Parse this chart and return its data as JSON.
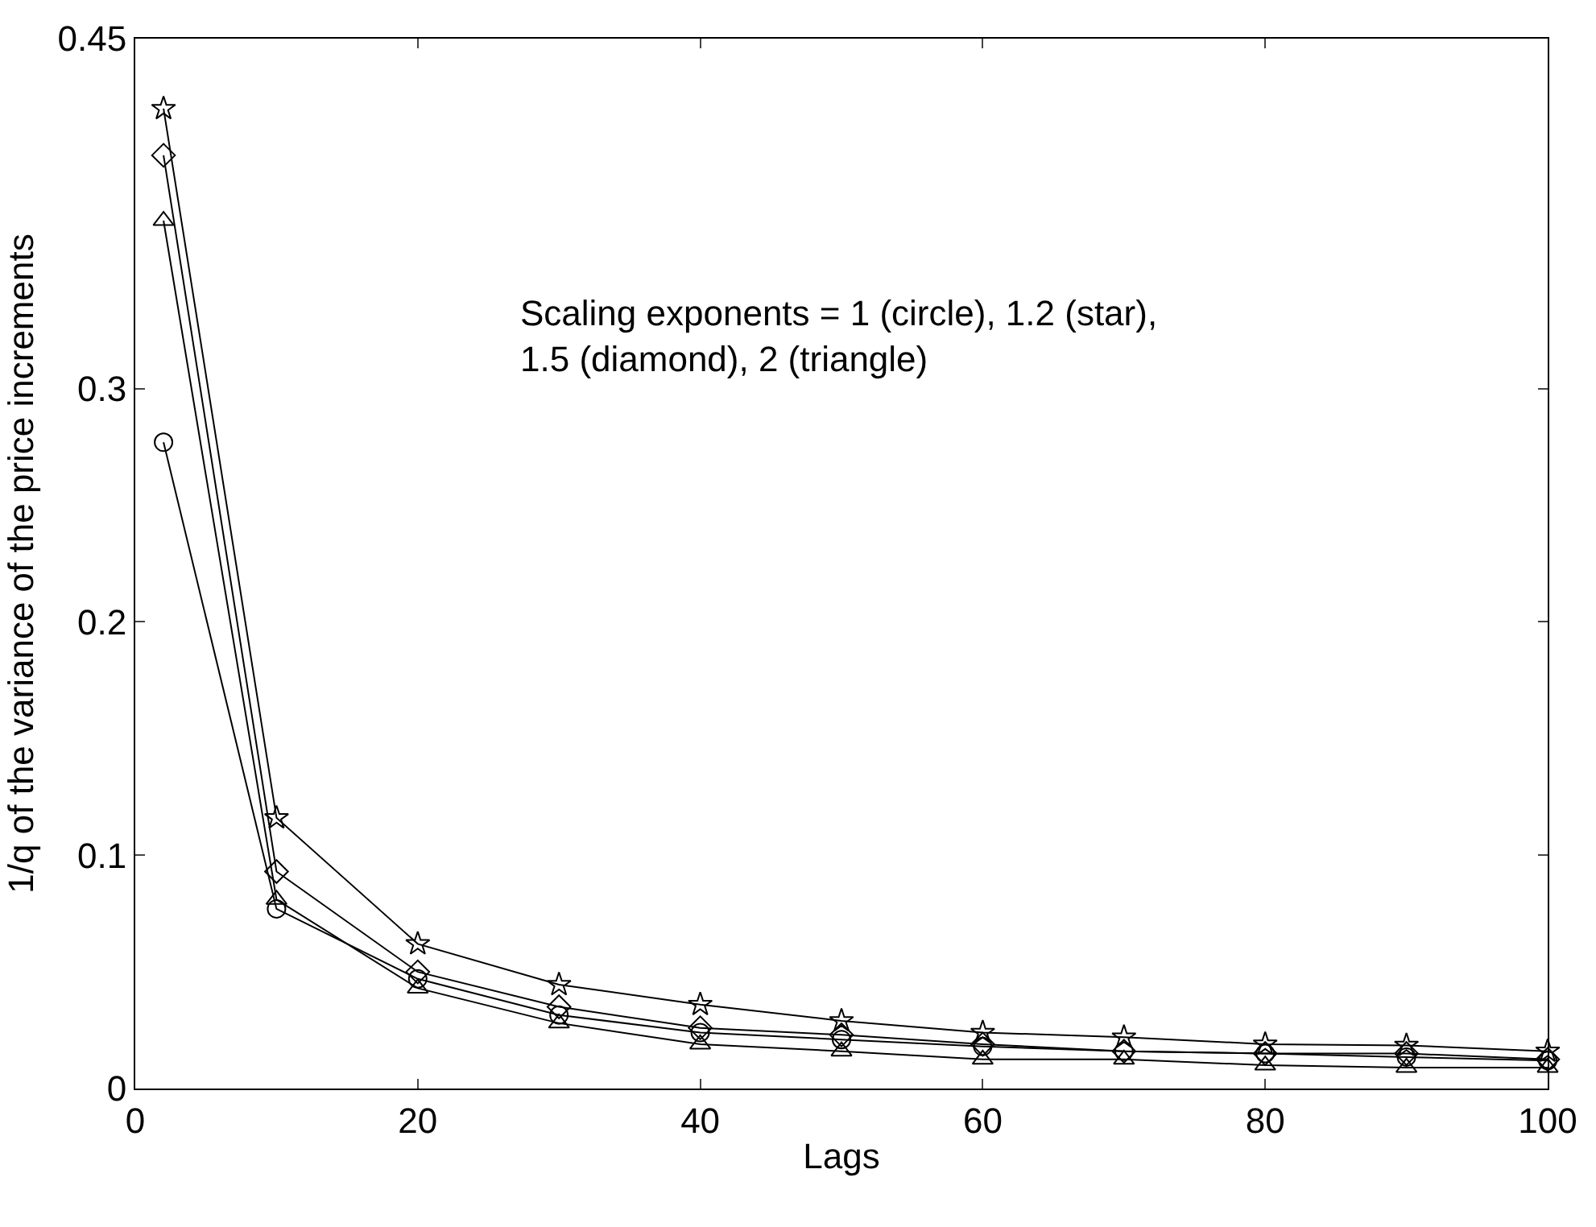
{
  "chart_data": {
    "type": "line",
    "xlabel": "Lags",
    "ylabel": "1/q of the variance of the price increments",
    "annotations": [
      "Scaling exponents = 1 (circle), 1.2 (star),\n1.5 (diamond), 2 (triangle)"
    ],
    "x": [
      2,
      10,
      20,
      30,
      40,
      50,
      60,
      70,
      80,
      90,
      100
    ],
    "series": [
      {
        "color": "#000000",
        "marker": "circle",
        "values": [
          0.277,
          0.077,
          0.047,
          0.0315,
          0.024,
          0.021,
          0.018,
          0.016,
          0.015,
          0.0135,
          0.012
        ]
      },
      {
        "color": "#000000",
        "marker": "star",
        "values": [
          0.42,
          0.116,
          0.062,
          0.0445,
          0.036,
          0.029,
          0.024,
          0.022,
          0.019,
          0.0185,
          0.016
        ]
      },
      {
        "color": "#000000",
        "marker": "diamond",
        "values": [
          0.4,
          0.093,
          0.05,
          0.035,
          0.026,
          0.023,
          0.019,
          0.016,
          0.015,
          0.015,
          0.0125
        ]
      },
      {
        "color": "#000000",
        "marker": "triangle",
        "values": [
          0.372,
          0.081,
          0.043,
          0.028,
          0.019,
          0.016,
          0.0125,
          0.0125,
          0.01,
          0.009,
          0.009
        ]
      }
    ],
    "xlim": [
      0,
      100
    ],
    "xticks": [
      0,
      20,
      40,
      60,
      80,
      100
    ],
    "ylim": [
      0,
      0.45
    ],
    "yticks": [
      0,
      0.1,
      0.2,
      0.3,
      0.45
    ],
    "line_style": "solid"
  }
}
